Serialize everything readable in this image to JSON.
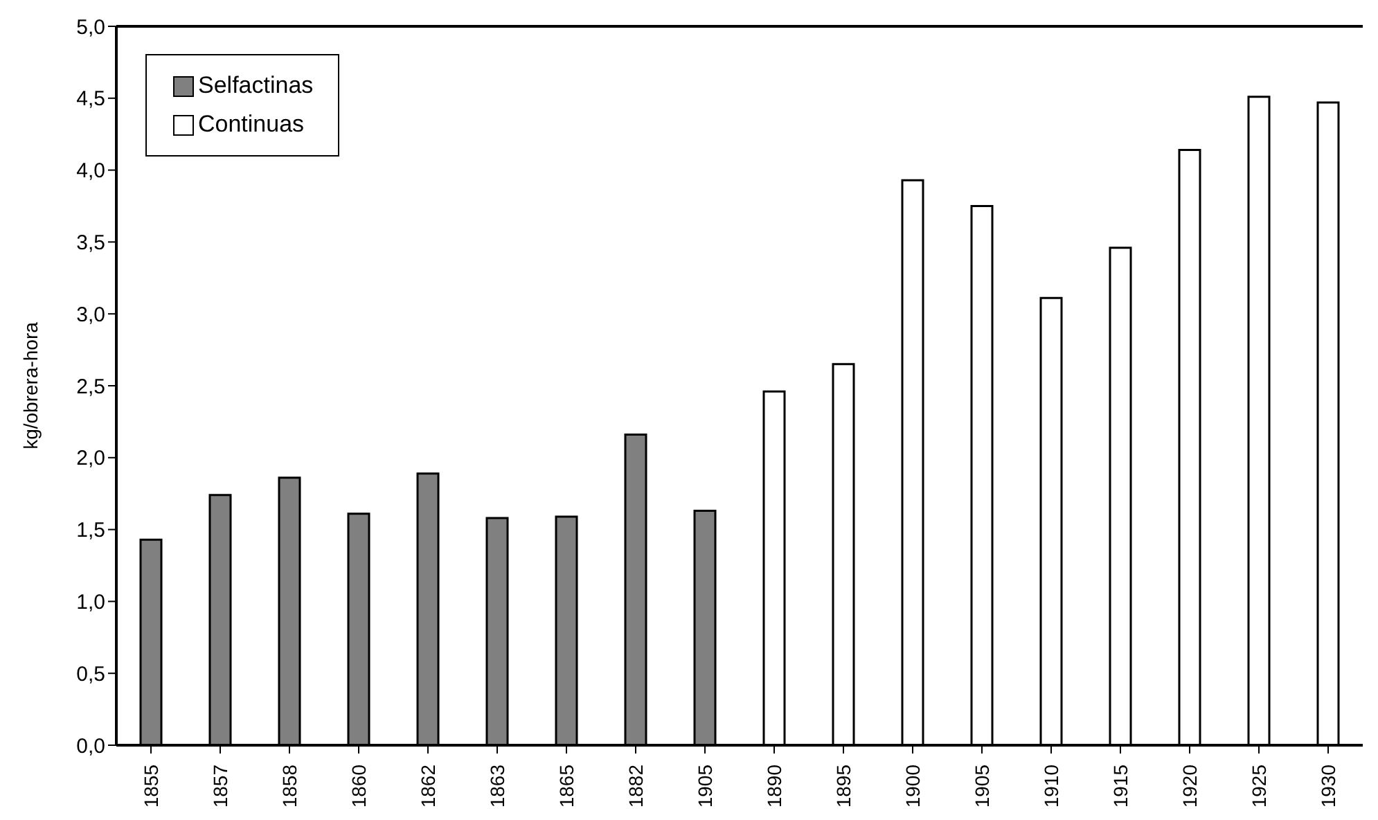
{
  "chart_data": {
    "type": "bar",
    "ylabel": "kg/obrera-hora",
    "categories": [
      "1855",
      "1857",
      "1858",
      "1860",
      "1862",
      "1863",
      "1865",
      "1882",
      "1905",
      "1890",
      "1895",
      "1900",
      "1905",
      "1910",
      "1915",
      "1920",
      "1925",
      "1930"
    ],
    "series": [
      {
        "name": "Selfactinas",
        "color": "#808080",
        "values": [
          1.43,
          1.74,
          1.86,
          1.61,
          1.89,
          1.58,
          1.59,
          2.16,
          1.63,
          null,
          null,
          null,
          null,
          null,
          null,
          null,
          null,
          null
        ]
      },
      {
        "name": "Continuas",
        "color": "#ffffff",
        "values": [
          null,
          null,
          null,
          null,
          null,
          null,
          null,
          null,
          null,
          2.46,
          2.65,
          3.93,
          3.75,
          3.11,
          3.46,
          4.14,
          4.51,
          4.47
        ]
      }
    ],
    "ylim": [
      0,
      5
    ],
    "yticks": [
      {
        "value": 0,
        "label": "0,0"
      },
      {
        "value": 0.5,
        "label": "0,5"
      },
      {
        "value": 1,
        "label": "1,0"
      },
      {
        "value": 1.5,
        "label": "1,5"
      },
      {
        "value": 2,
        "label": "2,0"
      },
      {
        "value": 2.5,
        "label": "2,5"
      },
      {
        "value": 3,
        "label": "3,0"
      },
      {
        "value": 3.5,
        "label": "3,5"
      },
      {
        "value": 4,
        "label": "4,0"
      },
      {
        "value": 4.5,
        "label": "4,5"
      },
      {
        "value": 5,
        "label": "5,0"
      }
    ],
    "legend": "top left",
    "grid": false
  }
}
